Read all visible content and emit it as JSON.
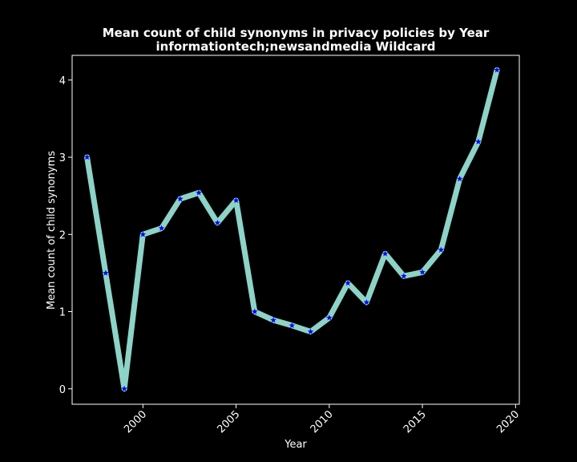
{
  "chart_data": {
    "type": "line",
    "title_line1": "Mean count of child synonyms in privacy policies by Year",
    "title_line2": "informationtech;newsandmedia Wildcard",
    "xlabel": "Year",
    "ylabel": "Mean count of child synonyms",
    "xlim": [
      1996.2,
      2020.2
    ],
    "ylim": [
      -0.2,
      4.32
    ],
    "x_ticks": [
      2000,
      2005,
      2010,
      2015,
      2020
    ],
    "y_ticks": [
      0,
      1,
      2,
      3,
      4
    ],
    "grid": false,
    "colors": {
      "background": "#000000",
      "line": "#8dd3c7",
      "marker": "#0000ff",
      "text": "#ffffff"
    },
    "series": [
      {
        "x": [
          1997,
          1998,
          1999,
          2000,
          2001,
          2002,
          2003,
          2004,
          2005,
          2006,
          2007,
          2008,
          2009,
          2010,
          2011,
          2012,
          2013,
          2014,
          2015,
          2016,
          2017,
          2018,
          2019
        ],
        "values": [
          3.0,
          1.5,
          0.0,
          2.0,
          2.08,
          2.46,
          2.54,
          2.15,
          2.44,
          1.0,
          0.89,
          0.82,
          0.74,
          0.92,
          1.37,
          1.12,
          1.75,
          1.46,
          1.51,
          1.8,
          2.72,
          3.2,
          4.13
        ]
      }
    ]
  }
}
